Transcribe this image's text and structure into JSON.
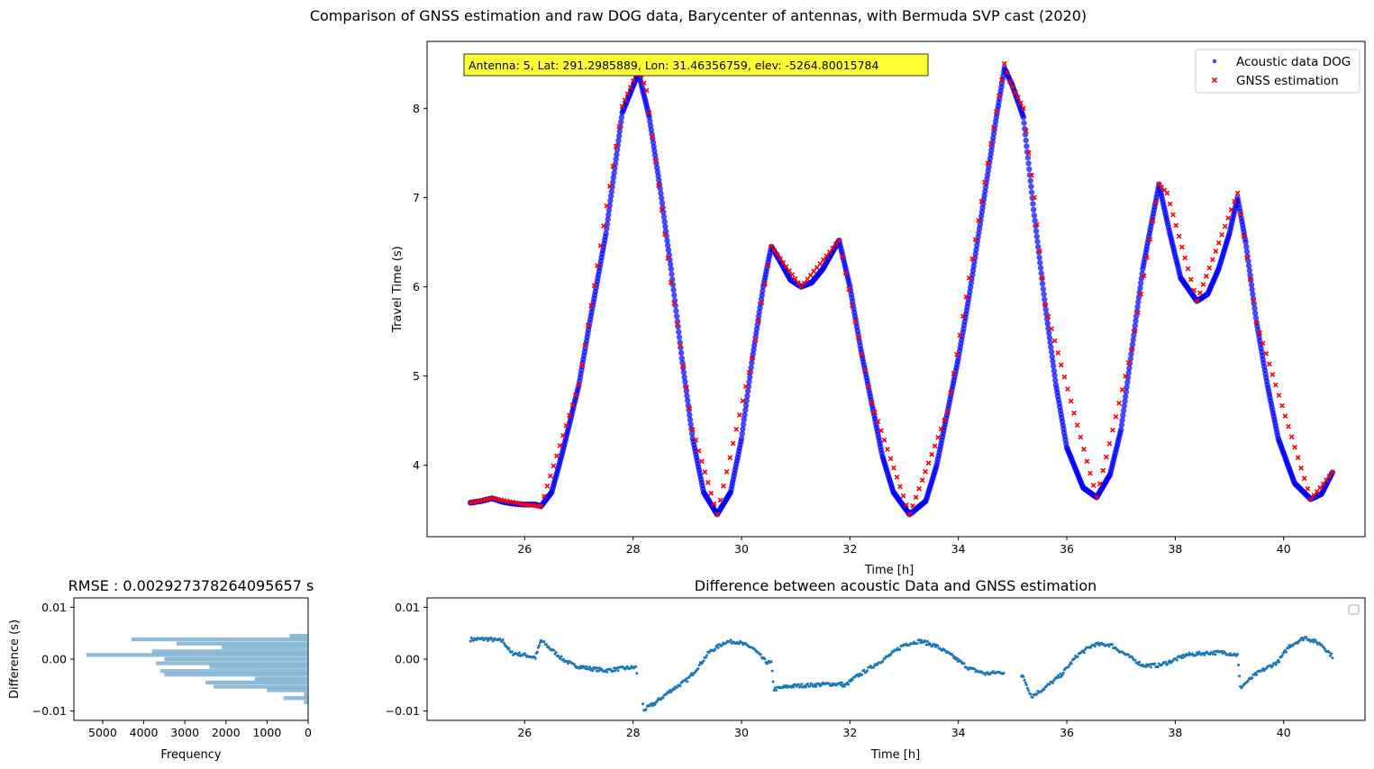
{
  "figure_title": "Comparison of GNSS estimation and raw DOG data, Barycenter of antennas, with Bermuda SVP cast (2020)",
  "chart_data": [
    {
      "id": "main",
      "type": "scatter",
      "title": "",
      "xlabel": "Time [h]",
      "ylabel": "Travel Time (s)",
      "xlim": [
        24.2,
        41.5
      ],
      "ylim": [
        3.2,
        8.75
      ],
      "xticks": [
        26,
        28,
        30,
        32,
        34,
        36,
        38,
        40
      ],
      "yticks": [
        4,
        5,
        6,
        7,
        8
      ],
      "grid": false,
      "legend_position": "top-right",
      "annotation": "Antenna: 5, Lat: 291.2985889, Lon: 31.46356759, elev: -5264.80015784",
      "annotation_bg": "#ffff33",
      "series": [
        {
          "name": "Acoustic data DOG",
          "marker": "circle",
          "color": "#0000ff",
          "points": [
            [
              25.0,
              3.58
            ],
            [
              25.2,
              3.6
            ],
            [
              25.4,
              3.63
            ],
            [
              25.6,
              3.59
            ],
            [
              25.8,
              3.57
            ],
            [
              26.0,
              3.56
            ],
            [
              26.2,
              3.56
            ],
            [
              26.3,
              3.54
            ],
            [
              26.5,
              3.7
            ],
            [
              26.7,
              4.15
            ],
            [
              27.0,
              4.9
            ],
            [
              27.2,
              5.6
            ],
            [
              27.5,
              6.6
            ],
            [
              27.8,
              7.95
            ],
            [
              28.1,
              8.4
            ],
            [
              28.3,
              7.9
            ],
            [
              28.5,
              7.1
            ],
            [
              28.7,
              6.2
            ],
            [
              28.9,
              5.2
            ],
            [
              29.1,
              4.3
            ],
            [
              29.3,
              3.7
            ],
            [
              29.55,
              3.45
            ],
            [
              29.8,
              3.7
            ],
            [
              30.0,
              4.3
            ],
            [
              30.2,
              5.2
            ],
            [
              30.4,
              6.0
            ],
            [
              30.55,
              6.45
            ],
            [
              30.7,
              6.3
            ],
            [
              30.9,
              6.08
            ],
            [
              31.1,
              6.0
            ],
            [
              31.3,
              6.05
            ],
            [
              31.5,
              6.2
            ],
            [
              31.8,
              6.52
            ],
            [
              32.0,
              6.0
            ],
            [
              32.2,
              5.3
            ],
            [
              32.4,
              4.7
            ],
            [
              32.6,
              4.1
            ],
            [
              32.8,
              3.7
            ],
            [
              33.1,
              3.45
            ],
            [
              33.4,
              3.6
            ],
            [
              33.6,
              4.0
            ],
            [
              33.8,
              4.6
            ],
            [
              34.0,
              5.2
            ],
            [
              34.2,
              5.9
            ],
            [
              34.4,
              6.7
            ],
            [
              34.7,
              7.9
            ],
            [
              34.85,
              8.45
            ],
            [
              35.0,
              8.25
            ],
            [
              35.2,
              7.9
            ],
            [
              35.4,
              6.8
            ],
            [
              35.6,
              5.8
            ],
            [
              35.8,
              4.9
            ],
            [
              36.0,
              4.2
            ],
            [
              36.3,
              3.75
            ],
            [
              36.55,
              3.64
            ],
            [
              36.8,
              3.9
            ],
            [
              37.0,
              4.4
            ],
            [
              37.2,
              5.3
            ],
            [
              37.4,
              6.2
            ],
            [
              37.7,
              7.15
            ],
            [
              37.9,
              6.6
            ],
            [
              38.1,
              6.1
            ],
            [
              38.4,
              5.84
            ],
            [
              38.6,
              5.92
            ],
            [
              38.8,
              6.2
            ],
            [
              39.0,
              6.6
            ],
            [
              39.15,
              7.0
            ],
            [
              39.3,
              6.5
            ],
            [
              39.5,
              5.6
            ],
            [
              39.7,
              4.9
            ],
            [
              39.9,
              4.3
            ],
            [
              40.2,
              3.8
            ],
            [
              40.5,
              3.62
            ],
            [
              40.7,
              3.68
            ],
            [
              40.9,
              3.92
            ]
          ]
        },
        {
          "name": "GNSS estimation",
          "marker": "x",
          "color": "#ff0000",
          "points": [
            [
              25.0,
              3.58
            ],
            [
              25.4,
              3.63
            ],
            [
              26.0,
              3.56
            ],
            [
              26.3,
              3.54
            ],
            [
              27.0,
              4.9
            ],
            [
              27.8,
              8.02
            ],
            [
              28.1,
              8.45
            ],
            [
              28.25,
              8.2
            ],
            [
              28.3,
              7.95
            ],
            [
              28.7,
              6.05
            ],
            [
              29.1,
              4.4
            ],
            [
              29.55,
              3.45
            ],
            [
              30.2,
              5.2
            ],
            [
              30.55,
              6.45
            ],
            [
              31.1,
              6.0
            ],
            [
              31.8,
              6.52
            ],
            [
              32.4,
              4.7
            ],
            [
              33.1,
              3.45
            ],
            [
              33.8,
              4.6
            ],
            [
              34.6,
              7.6
            ],
            [
              34.85,
              8.5
            ],
            [
              34.95,
              8.3
            ],
            [
              35.2,
              8.0
            ],
            [
              35.4,
              7.0
            ],
            [
              35.6,
              5.8
            ],
            [
              36.55,
              3.64
            ],
            [
              37.2,
              5.3
            ],
            [
              37.7,
              7.15
            ],
            [
              37.85,
              7.05
            ],
            [
              38.4,
              5.84
            ],
            [
              39.15,
              7.05
            ],
            [
              39.5,
              5.6
            ],
            [
              40.5,
              3.62
            ],
            [
              40.9,
              3.92
            ]
          ]
        }
      ]
    },
    {
      "id": "diff",
      "type": "scatter",
      "title": "Difference between acoustic Data and GNSS estimation",
      "xlabel": "Time [h]",
      "ylabel": "",
      "xlim": [
        24.2,
        41.5
      ],
      "ylim": [
        -0.0118,
        0.0118
      ],
      "xticks": [
        26,
        28,
        30,
        32,
        34,
        36,
        38,
        40
      ],
      "yticks": [
        -0.01,
        0.0,
        0.01
      ],
      "ytick_labels": [
        "−0.01",
        "0.00",
        "0.01"
      ],
      "grid": false,
      "legend_position": "top-right",
      "series": [
        {
          "name": "",
          "marker": "dot",
          "color": "#1f77b4",
          "points": [
            [
              25.0,
              0.0038
            ],
            [
              25.3,
              0.0039
            ],
            [
              25.6,
              0.0035
            ],
            [
              25.75,
              0.0012
            ],
            [
              26.0,
              0.0008
            ],
            [
              26.2,
              0.0003
            ],
            [
              26.3,
              0.0036
            ],
            [
              26.5,
              0.0018
            ],
            [
              26.7,
              0.0
            ],
            [
              26.9,
              -0.0012
            ],
            [
              27.2,
              -0.0018
            ],
            [
              27.5,
              -0.0022
            ],
            [
              27.8,
              -0.0018
            ],
            [
              28.05,
              -0.0016
            ],
            [
              28.2,
              -0.0098
            ],
            [
              28.4,
              -0.0085
            ],
            [
              28.7,
              -0.006
            ],
            [
              29.0,
              -0.004
            ],
            [
              29.2,
              -0.0015
            ],
            [
              29.4,
              0.0013
            ],
            [
              29.7,
              0.0033
            ],
            [
              29.9,
              0.0034
            ],
            [
              30.2,
              0.0022
            ],
            [
              30.45,
              -0.0005
            ],
            [
              30.55,
              -0.0008
            ],
            [
              30.6,
              -0.0058
            ],
            [
              30.9,
              -0.0052
            ],
            [
              31.3,
              -0.005
            ],
            [
              31.6,
              -0.0048
            ],
            [
              31.85,
              -0.0048
            ],
            [
              31.9,
              -0.0052
            ],
            [
              32.1,
              -0.0035
            ],
            [
              32.4,
              -0.0015
            ],
            [
              32.7,
              0.0005
            ],
            [
              33.0,
              0.0028
            ],
            [
              33.3,
              0.0035
            ],
            [
              33.6,
              0.0025
            ],
            [
              33.9,
              0.0005
            ],
            [
              34.2,
              -0.0018
            ],
            [
              34.5,
              -0.0028
            ],
            [
              34.8,
              -0.0025
            ],
            [
              35.2,
              -0.0035
            ],
            [
              35.35,
              -0.0072
            ],
            [
              35.6,
              -0.0055
            ],
            [
              35.9,
              -0.003
            ],
            [
              36.2,
              0.0008
            ],
            [
              36.5,
              0.0028
            ],
            [
              36.8,
              0.0028
            ],
            [
              37.1,
              0.0008
            ],
            [
              37.4,
              -0.0012
            ],
            [
              37.7,
              -0.0012
            ],
            [
              37.9,
              -0.0005
            ],
            [
              38.2,
              0.0008
            ],
            [
              38.6,
              0.0012
            ],
            [
              38.9,
              0.0013
            ],
            [
              39.15,
              0.0008
            ],
            [
              39.2,
              -0.0055
            ],
            [
              39.5,
              -0.0028
            ],
            [
              39.9,
              -0.0005
            ],
            [
              40.1,
              0.0025
            ],
            [
              40.4,
              0.0042
            ],
            [
              40.7,
              0.0028
            ],
            [
              40.9,
              0.0005
            ]
          ]
        }
      ]
    },
    {
      "id": "hist",
      "type": "bar",
      "orientation": "horizontal",
      "title": "RMSE : 0.002927378264095657 s",
      "xlabel": "Frequency",
      "ylabel": "Difference (s)",
      "xlim": [
        5700,
        0
      ],
      "ylim": [
        -0.0118,
        0.0118
      ],
      "xticks": [
        5000,
        4000,
        3000,
        2000,
        1000,
        0
      ],
      "yticks": [
        -0.01,
        0.0,
        0.01
      ],
      "ytick_labels": [
        "−0.01",
        "0.00",
        "0.01"
      ],
      "color": "#1f77b4",
      "alpha": 0.5,
      "bin_width": 0.00075,
      "bins": [
        [
          -0.0083,
          100
        ],
        [
          -0.0075,
          600
        ],
        [
          -0.0068,
          100
        ],
        [
          -0.006,
          1000
        ],
        [
          -0.0053,
          2300
        ],
        [
          -0.0045,
          2500
        ],
        [
          -0.0038,
          1300
        ],
        [
          -0.003,
          3500
        ],
        [
          -0.0023,
          3600
        ],
        [
          -0.0015,
          2400
        ],
        [
          -0.0008,
          3700
        ],
        [
          0.0,
          3500
        ],
        [
          0.0008,
          5400
        ],
        [
          0.0015,
          3800
        ],
        [
          0.0023,
          2100
        ],
        [
          0.003,
          3200
        ],
        [
          0.0038,
          4300
        ],
        [
          0.0045,
          450
        ]
      ]
    }
  ]
}
